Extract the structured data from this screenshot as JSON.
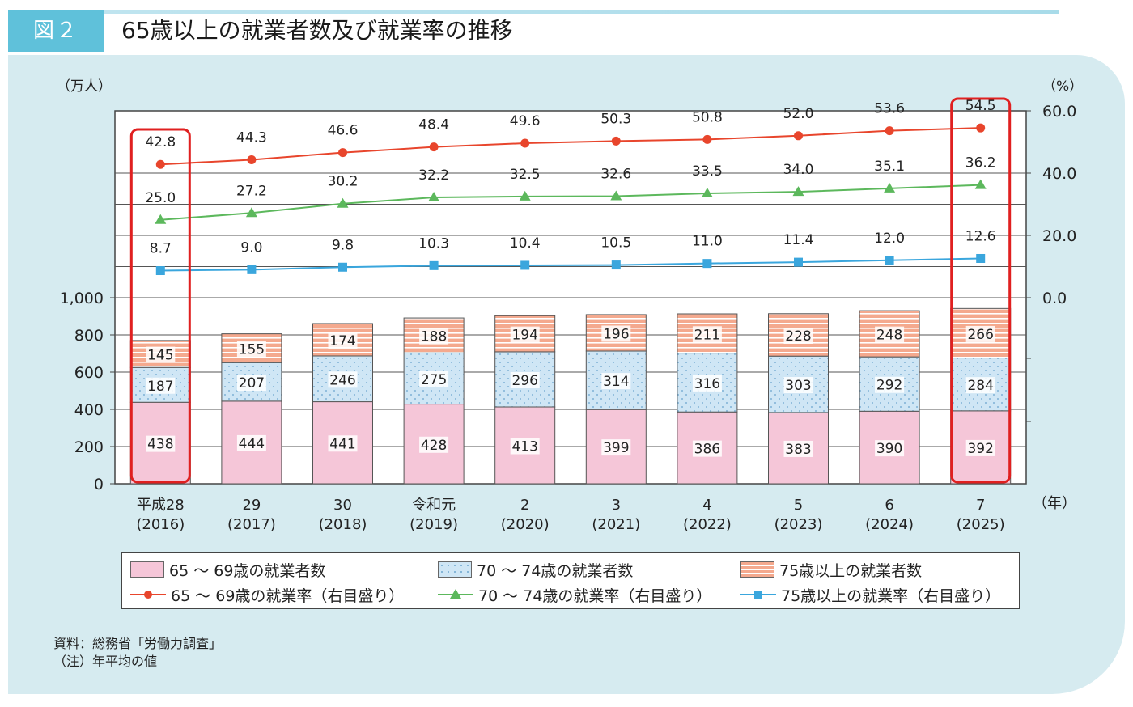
{
  "figure": {
    "tag": "図２",
    "title": "65歳以上の就業者数及び就業率の推移"
  },
  "chart_data": {
    "type": "bar+line",
    "left_axis": {
      "label": "（万人）",
      "ticks": [
        "0",
        "200",
        "400",
        "600",
        "800",
        "1,000"
      ],
      "range": [
        0,
        1000
      ]
    },
    "right_axis": {
      "label": "（%）",
      "ticks": [
        "0.0",
        "20.0",
        "40.0",
        "60.0"
      ],
      "range": [
        0,
        60
      ]
    },
    "x_unit": "（年）",
    "categories": [
      [
        "平成28",
        "(2016)"
      ],
      [
        "29",
        "(2017)"
      ],
      [
        "30",
        "(2018)"
      ],
      [
        "令和元",
        "(2019)"
      ],
      [
        "2",
        "(2020)"
      ],
      [
        "3",
        "(2021)"
      ],
      [
        "4",
        "(2022)"
      ],
      [
        "5",
        "(2023)"
      ],
      [
        "6",
        "(2024)"
      ],
      [
        "7",
        "(2025)"
      ]
    ],
    "bar_series": [
      {
        "name": "65 ～ 69歳の就業者数",
        "values": [
          438,
          444,
          441,
          428,
          413,
          399,
          386,
          383,
          390,
          392
        ],
        "color": "#f5c6d8"
      },
      {
        "name": "70 ～ 74歳の就業者数",
        "values": [
          187,
          207,
          246,
          275,
          296,
          314,
          316,
          303,
          292,
          284
        ],
        "color": "#cfe6f5"
      },
      {
        "name": "75歳以上の就業者数",
        "values": [
          145,
          155,
          174,
          188,
          194,
          196,
          211,
          228,
          248,
          266
        ],
        "color": "#f4a98e"
      }
    ],
    "line_series": [
      {
        "name": "65 ～ 69歳の就業率（右目盛り）",
        "values": [
          42.8,
          44.3,
          46.6,
          48.4,
          49.6,
          50.3,
          50.8,
          52.0,
          53.6,
          54.5
        ],
        "labels": [
          "42.8",
          "44.3",
          "46.6",
          "48.4",
          "49.6",
          "50.3",
          "50.8",
          "52.0",
          "53.6",
          "54.5"
        ],
        "color": "#e8452c",
        "marker": "circle"
      },
      {
        "name": "70 ～ 74歳の就業率（右目盛り）",
        "values": [
          25.0,
          27.2,
          30.2,
          32.2,
          32.5,
          32.6,
          33.5,
          34.0,
          35.1,
          36.2
        ],
        "labels": [
          "25.0",
          "27.2",
          "30.2",
          "32.2",
          "32.5",
          "32.6",
          "33.5",
          "34.0",
          "35.1",
          "36.2"
        ],
        "color": "#5cb85c",
        "marker": "triangle"
      },
      {
        "name": "75歳以上の就業率（右目盛り）",
        "values": [
          8.7,
          9.0,
          9.8,
          10.3,
          10.4,
          10.5,
          11.0,
          11.4,
          12.0,
          12.6
        ],
        "labels": [
          "8.7",
          "9.0",
          "9.8",
          "10.3",
          "10.4",
          "10.5",
          "11.0",
          "11.4",
          "12.0",
          "12.6"
        ],
        "color": "#3aa6dd",
        "marker": "square"
      }
    ],
    "highlighted_categories": [
      0,
      9
    ],
    "grid": true,
    "legend_position": "bottom"
  },
  "source": {
    "line1": "資料：総務省「労働力調査」",
    "line2": "（注）年平均の値"
  }
}
